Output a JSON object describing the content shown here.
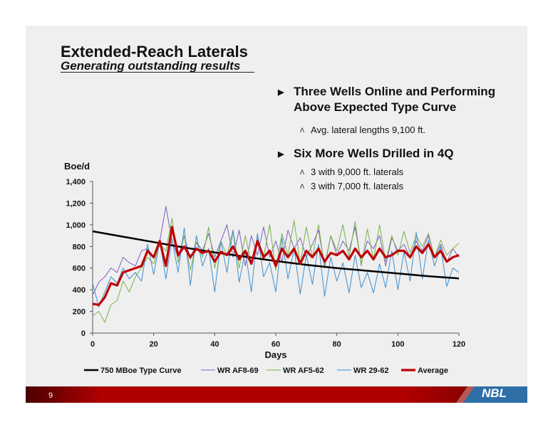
{
  "header": {
    "title": "Extended-Reach Laterals",
    "subtitle": "Generating outstanding results"
  },
  "bullets": [
    {
      "text": "Three Wells Online and Performing Above Expected Type Curve",
      "sub": [
        "Avg. lateral lengths 9,100 ft."
      ]
    },
    {
      "text": "Six More Wells Drilled in 4Q",
      "sub": [
        "3 with 9,000 ft. laterals",
        "3 with 7,000 ft. laterals"
      ]
    }
  ],
  "footer": {
    "page_number": "9",
    "logo_text": "NBL"
  },
  "chart_data": {
    "type": "line",
    "ylabel": "Boe/d",
    "xlabel": "Days",
    "xlim": [
      0,
      120
    ],
    "ylim": [
      0,
      1400
    ],
    "xticks": [
      0,
      20,
      40,
      60,
      80,
      100,
      120
    ],
    "yticks": [
      0,
      200,
      400,
      600,
      800,
      1000,
      1200,
      1400
    ],
    "ytick_labels": [
      "0",
      "200",
      "400",
      "600",
      "800",
      "1,000",
      "1,200",
      "1,400"
    ],
    "grid": false,
    "legend_position": "bottom",
    "series": [
      {
        "name": "750 MBoe Type Curve",
        "color": "#000000",
        "x": [
          0,
          10,
          20,
          30,
          40,
          50,
          60,
          70,
          80,
          90,
          100,
          110,
          120
        ],
        "values": [
          940,
          890,
          840,
          790,
          745,
          705,
          665,
          630,
          600,
          575,
          550,
          525,
          505
        ]
      },
      {
        "name": "WR AF8-69",
        "color": "#7f5fbf",
        "x": [
          0,
          2,
          4,
          6,
          8,
          10,
          12,
          14,
          16,
          18,
          20,
          22,
          24,
          26,
          28,
          30,
          32,
          34,
          36,
          38,
          40,
          42,
          44,
          46,
          48,
          50,
          52,
          54,
          56,
          58,
          60,
          62,
          64,
          66,
          68,
          70,
          72,
          74,
          76,
          78,
          80,
          82,
          84,
          86,
          88,
          90,
          92,
          94,
          96,
          98,
          100,
          102,
          104,
          106,
          108,
          110,
          112,
          114,
          116,
          118,
          120
        ],
        "values": [
          350,
          470,
          520,
          600,
          560,
          700,
          650,
          620,
          760,
          780,
          700,
          850,
          1170,
          850,
          700,
          900,
          680,
          840,
          760,
          920,
          700,
          850,
          1000,
          700,
          950,
          620,
          900,
          720,
          980,
          700,
          850,
          660,
          950,
          780,
          880,
          700,
          820,
          950,
          620,
          900,
          720,
          850,
          760,
          980,
          640,
          850,
          780,
          900,
          620,
          880,
          760,
          820,
          700,
          850,
          760,
          900,
          700,
          820,
          650,
          780,
          700
        ]
      },
      {
        "name": "WR AF5-62",
        "color": "#77b24a",
        "x": [
          0,
          2,
          4,
          6,
          8,
          10,
          12,
          14,
          16,
          18,
          20,
          22,
          24,
          26,
          28,
          30,
          32,
          34,
          36,
          38,
          40,
          42,
          44,
          46,
          48,
          50,
          52,
          54,
          56,
          58,
          60,
          62,
          64,
          66,
          68,
          70,
          72,
          74,
          76,
          78,
          80,
          82,
          84,
          86,
          88,
          90,
          92,
          94,
          96,
          98,
          100,
          102,
          104,
          106,
          108,
          110,
          112,
          114,
          116,
          118,
          120
        ],
        "values": [
          160,
          200,
          100,
          260,
          300,
          480,
          380,
          520,
          600,
          700,
          640,
          820,
          760,
          1060,
          650,
          900,
          580,
          840,
          700,
          980,
          600,
          850,
          720,
          950,
          600,
          900,
          640,
          880,
          700,
          1000,
          580,
          920,
          720,
          1040,
          640,
          980,
          700,
          1000,
          600,
          900,
          760,
          1000,
          700,
          1030,
          620,
          960,
          680,
          1000,
          660,
          900,
          720,
          940,
          740,
          900,
          800,
          920,
          700,
          860,
          720,
          780,
          830
        ]
      },
      {
        "name": "WR 29-62",
        "color": "#3f8fcf",
        "x": [
          0,
          2,
          4,
          6,
          8,
          10,
          12,
          14,
          16,
          18,
          20,
          22,
          24,
          26,
          28,
          30,
          32,
          34,
          36,
          38,
          40,
          42,
          44,
          46,
          48,
          50,
          52,
          54,
          56,
          58,
          60,
          62,
          64,
          66,
          68,
          70,
          72,
          74,
          76,
          78,
          80,
          82,
          84,
          86,
          88,
          90,
          92,
          94,
          96,
          98,
          100,
          102,
          104,
          106,
          108,
          110,
          112,
          114,
          116,
          118,
          120
        ],
        "values": [
          460,
          240,
          380,
          520,
          460,
          600,
          500,
          560,
          480,
          820,
          540,
          850,
          500,
          870,
          560,
          970,
          440,
          900,
          620,
          780,
          380,
          850,
          560,
          950,
          470,
          760,
          380,
          920,
          520,
          650,
          380,
          880,
          500,
          780,
          360,
          720,
          450,
          820,
          340,
          700,
          480,
          650,
          370,
          720,
          420,
          560,
          370,
          640,
          420,
          760,
          400,
          750,
          480,
          930,
          500,
          860,
          620,
          800,
          430,
          600,
          560
        ]
      },
      {
        "name": "Average",
        "color": "#c00000",
        "x": [
          0,
          2,
          4,
          6,
          8,
          10,
          12,
          14,
          16,
          18,
          20,
          22,
          24,
          26,
          28,
          30,
          32,
          34,
          36,
          38,
          40,
          42,
          44,
          46,
          48,
          50,
          52,
          54,
          56,
          58,
          60,
          62,
          64,
          66,
          68,
          70,
          72,
          74,
          76,
          78,
          80,
          82,
          84,
          86,
          88,
          90,
          92,
          94,
          96,
          98,
          100,
          102,
          104,
          106,
          108,
          110,
          112,
          114,
          116,
          118,
          120
        ],
        "values": [
          270,
          260,
          330,
          460,
          440,
          560,
          580,
          600,
          620,
          760,
          700,
          850,
          620,
          980,
          720,
          800,
          700,
          780,
          740,
          760,
          660,
          750,
          720,
          800,
          680,
          760,
          640,
          850,
          700,
          760,
          620,
          780,
          700,
          780,
          640,
          760,
          700,
          780,
          660,
          740,
          720,
          760,
          680,
          780,
          700,
          760,
          680,
          780,
          700,
          720,
          760,
          760,
          700,
          800,
          740,
          820,
          700,
          760,
          660,
          700,
          720
        ]
      }
    ]
  }
}
